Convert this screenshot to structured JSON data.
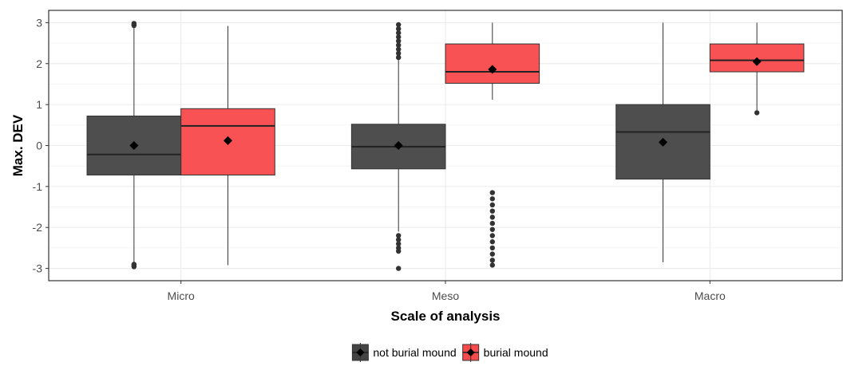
{
  "chart_data": {
    "type": "boxplot",
    "xlabel": "Scale of analysis",
    "ylabel": "Max. DEV",
    "categories": [
      "Micro",
      "Meso",
      "Macro"
    ],
    "ylim": [
      -3.3,
      3.3
    ],
    "yticks": [
      -3,
      -2,
      -1,
      0,
      1,
      2,
      3
    ],
    "yticklabels": [
      "-3",
      "-2",
      "-1",
      "0",
      "1",
      "2",
      "3"
    ],
    "grid": true,
    "legend_position": "bottom",
    "colors": {
      "not_burial_mound": "#444444",
      "burial_mound": "#f8494b",
      "mean_marker": "#000000",
      "grid": "#ebebeb",
      "panel_border": "#333333"
    },
    "series": [
      {
        "name": "not burial mound",
        "boxes": [
          {
            "category": "Micro",
            "whisker_low": -2.92,
            "q1": -0.72,
            "median": -0.22,
            "q3": 0.72,
            "whisker_high": 2.92,
            "mean": 0.0,
            "outliers": [
              2.98,
              2.95,
              2.93,
              -2.9,
              -2.93,
              -2.96
            ]
          },
          {
            "category": "Meso",
            "whisker_low": -2.1,
            "q1": -0.57,
            "median": -0.03,
            "q3": 0.52,
            "whisker_high": 2.1,
            "mean": 0.0,
            "outliers": [
              2.15,
              2.25,
              2.35,
              2.45,
              2.55,
              2.65,
              2.75,
              2.85,
              2.95,
              -2.2,
              -2.3,
              -2.4,
              -2.5,
              -2.58,
              -3.0
            ]
          },
          {
            "category": "Macro",
            "whisker_low": -2.85,
            "q1": -0.82,
            "median": 0.33,
            "q3": 1.0,
            "whisker_high": 3.0,
            "mean": 0.08,
            "outliers": []
          }
        ]
      },
      {
        "name": "burial mound",
        "boxes": [
          {
            "category": "Micro",
            "whisker_low": -2.92,
            "q1": -0.72,
            "median": 0.48,
            "q3": 0.9,
            "whisker_high": 2.92,
            "mean": 0.12,
            "outliers": []
          },
          {
            "category": "Meso",
            "whisker_low": 1.12,
            "q1": 1.52,
            "median": 1.8,
            "q3": 2.48,
            "whisker_high": 3.0,
            "mean": 1.86,
            "outliers": [
              -1.15,
              -1.3,
              -1.45,
              -1.6,
              -1.75,
              -1.9,
              -2.05,
              -2.2,
              -2.35,
              -2.5,
              -2.65,
              -2.8,
              -2.92
            ]
          },
          {
            "category": "Macro",
            "whisker_low": 0.82,
            "q1": 1.8,
            "median": 2.08,
            "q3": 2.48,
            "whisker_high": 3.0,
            "mean": 2.05,
            "outliers": [
              0.8
            ]
          }
        ]
      }
    ]
  }
}
